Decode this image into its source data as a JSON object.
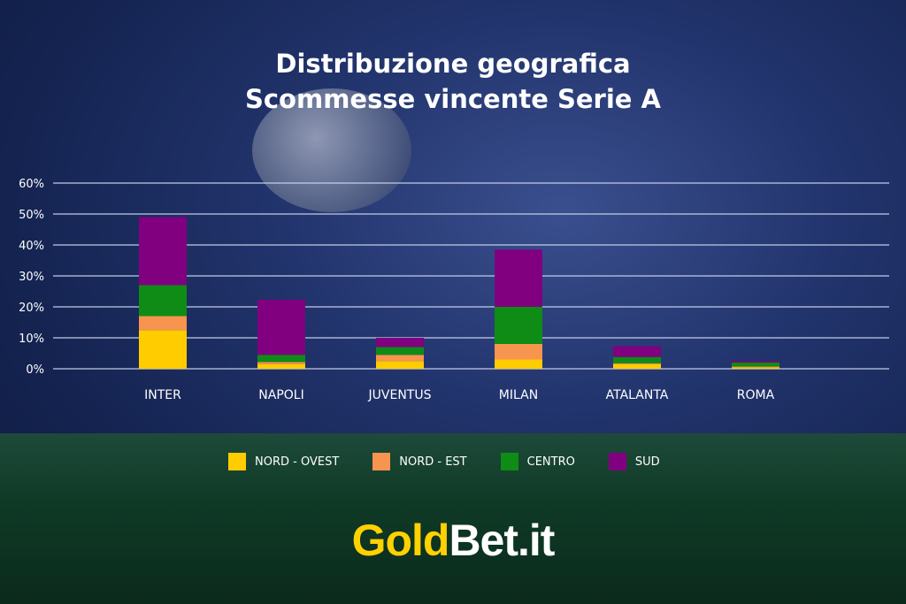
{
  "title_line1": "Distribuzione geografica",
  "title_line2": "Scommesse vincente Serie A",
  "logo": {
    "part1": "Gold",
    "part2": "Bet.it",
    "color1": "#FFD100",
    "color2": "#FFFFFF"
  },
  "chart_data": {
    "type": "bar",
    "stacked": true,
    "categories": [
      "INTER",
      "NAPOLI",
      "JUVENTUS",
      "MILAN",
      "ATALANTA",
      "ROMA"
    ],
    "series": [
      {
        "name": "NORD - OVEST",
        "color": "#FFCC00",
        "values": [
          12.5,
          1.5,
          2.5,
          3,
          1.5,
          0.5
        ]
      },
      {
        "name": "NORD - EST",
        "color": "#F7944F",
        "values": [
          4.5,
          0.7,
          2,
          5,
          0.3,
          0.2
        ]
      },
      {
        "name": "CENTRO",
        "color": "#0E8C16",
        "values": [
          10,
          2.3,
          2.5,
          12,
          2,
          1.3
        ]
      },
      {
        "name": "SUD",
        "color": "#800080",
        "values": [
          22,
          17.8,
          3,
          18.5,
          3.5,
          0.5
        ]
      }
    ],
    "yticks": [
      "0%",
      "10%",
      "20%",
      "30%",
      "40%",
      "50%",
      "60%"
    ],
    "ylim": [
      0,
      60
    ],
    "grid": true,
    "legend": "bottom"
  }
}
